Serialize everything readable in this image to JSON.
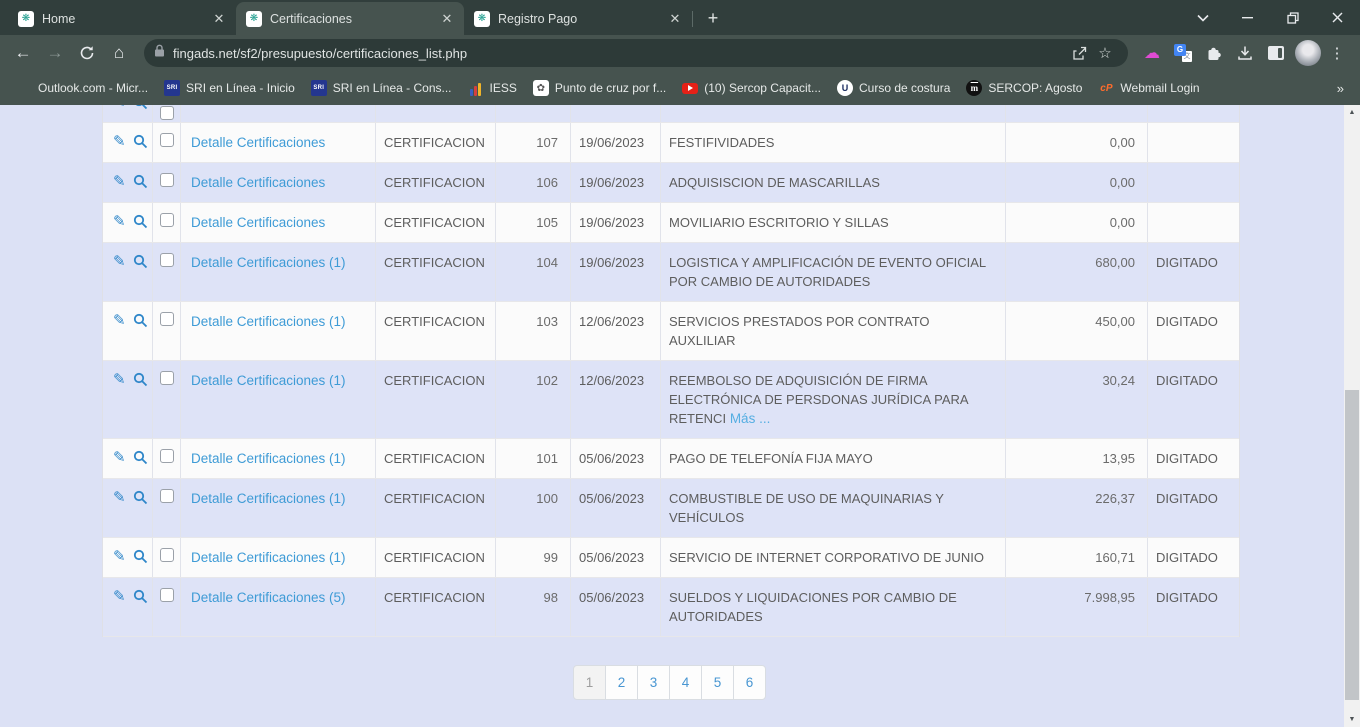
{
  "colors": {
    "chrome_dark": "#313e3c",
    "chrome_light": "#46534f",
    "page_bg": "#dce1f5",
    "row_alt": "#dee3f7",
    "link_blue": "#3e9bd6",
    "icon_blue": "#2e86c9"
  },
  "icons": {
    "favicon": "❋",
    "new_tab": "+",
    "back": "←",
    "forward": "→",
    "home": "⌂",
    "star": "☆",
    "cloud": "☁",
    "overflow": "»",
    "menu_dots": "⋮",
    "pencil": "✎",
    "swirl": "✿",
    "sri": "SRI",
    "u-circle": "U",
    "m-circle": "m",
    "cpanel": "cP",
    "scroll_up": "▲",
    "scroll_down": "▼"
  },
  "browser": {
    "tabs": [
      {
        "title": "Home",
        "active": false
      },
      {
        "title": "Certificaciones",
        "active": true
      },
      {
        "title": "Registro Pago",
        "active": false
      }
    ],
    "toolbar": {
      "url": "fingads.net/sf2/presupuesto/certificaciones_list.php"
    },
    "bookmarks": [
      {
        "label": "Outlook.com - Micr...",
        "icon": "microsoft"
      },
      {
        "label": "SRI en Línea - Inicio",
        "icon": "sri"
      },
      {
        "label": "SRI en Línea - Cons...",
        "icon": "sri"
      },
      {
        "label": "IESS",
        "icon": "iess"
      },
      {
        "label": "Punto de cruz por f...",
        "icon": "swirl"
      },
      {
        "label": "(10) Sercop Capacit...",
        "icon": "youtube"
      },
      {
        "label": "Curso de costura",
        "icon": "u-circle"
      },
      {
        "label": "SERCOP: Agosto",
        "icon": "m-circle"
      },
      {
        "label": "Webmail Login",
        "icon": "cpanel"
      }
    ]
  },
  "table": {
    "rows": [
      {
        "link": "Detalle Certificaciones",
        "tipo": "CERTIFICACION",
        "num": "107",
        "fecha": "19/06/2023",
        "desc": "FESTIFIVIDADES",
        "monto": "0,00",
        "estado": ""
      },
      {
        "link": "Detalle Certificaciones",
        "tipo": "CERTIFICACION",
        "num": "106",
        "fecha": "19/06/2023",
        "desc": "ADQUISISCION DE MASCARILLAS",
        "monto": "0,00",
        "estado": ""
      },
      {
        "link": "Detalle Certificaciones",
        "tipo": "CERTIFICACION",
        "num": "105",
        "fecha": "19/06/2023",
        "desc": "MOVILIARIO ESCRITORIO Y SILLAS",
        "monto": "0,00",
        "estado": ""
      },
      {
        "link": "Detalle Certificaciones (1)",
        "tipo": "CERTIFICACION",
        "num": "104",
        "fecha": "19/06/2023",
        "desc": "LOGISTICA Y AMPLIFICACIÓN DE EVENTO OFICIAL POR CAMBIO DE AUTORIDADES",
        "monto": "680,00",
        "estado": "DIGITADO"
      },
      {
        "link": "Detalle Certificaciones (1)",
        "tipo": "CERTIFICACION",
        "num": "103",
        "fecha": "12/06/2023",
        "desc": "SERVICIOS PRESTADOS POR CONTRATO AUXLILIAR",
        "monto": "450,00",
        "estado": "DIGITADO"
      },
      {
        "link": "Detalle Certificaciones (1)",
        "tipo": "CERTIFICACION",
        "num": "102",
        "fecha": "12/06/2023",
        "desc": "REEMBOLSO DE ADQUISICIÓN DE FIRMA ELECTRÓNICA DE PERSDONAS JURÍDICA PARA RETENCI",
        "desc_link": "Más ...",
        "monto": "30,24",
        "estado": "DIGITADO"
      },
      {
        "link": "Detalle Certificaciones (1)",
        "tipo": "CERTIFICACION",
        "num": "101",
        "fecha": "05/06/2023",
        "desc": "PAGO DE TELEFONÍA FIJA MAYO",
        "monto": "13,95",
        "estado": "DIGITADO"
      },
      {
        "link": "Detalle Certificaciones (1)",
        "tipo": "CERTIFICACION",
        "num": "100",
        "fecha": "05/06/2023",
        "desc": "COMBUSTIBLE DE USO DE MAQUINARIAS Y VEHÍCULOS",
        "monto": "226,37",
        "estado": "DIGITADO"
      },
      {
        "link": "Detalle Certificaciones (1)",
        "tipo": "CERTIFICACION",
        "num": "99",
        "fecha": "05/06/2023",
        "desc": "SERVICIO DE INTERNET CORPORATIVO DE JUNIO",
        "monto": "160,71",
        "estado": "DIGITADO"
      },
      {
        "link": "Detalle Certificaciones (5)",
        "tipo": "CERTIFICACION",
        "num": "98",
        "fecha": "05/06/2023",
        "desc": "SUELDOS Y LIQUIDACIONES POR CAMBIO DE AUTORIDADES",
        "monto": "7.998,95",
        "estado": "DIGITADO"
      }
    ]
  },
  "pagination": {
    "pages": [
      "1",
      "2",
      "3",
      "4",
      "5",
      "6"
    ],
    "current": "1"
  }
}
